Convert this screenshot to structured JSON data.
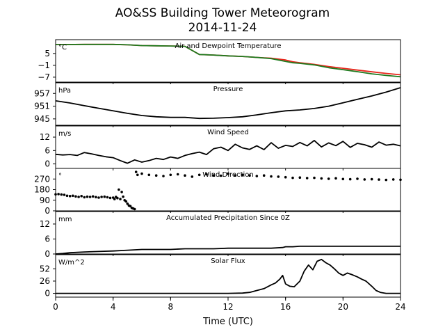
{
  "title_line1": "AO&SS Building Tower Meteorogram",
  "title_line2": "2014-11-24",
  "xlabel": "Time (UTC)",
  "xaxis": {
    "range": [
      0,
      24
    ],
    "ticks": [
      0,
      4,
      8,
      12,
      16,
      20,
      24
    ],
    "tick_labels": [
      "0",
      "4",
      "8",
      "12",
      "16",
      "20",
      "24"
    ]
  },
  "chart_data": [
    {
      "type": "line",
      "title": "Air and Dewpoint Temperature",
      "unit": "°C",
      "ylim": [
        -9.5,
        12
      ],
      "yticks": [
        5,
        -1,
        -7
      ],
      "ytick_labels": [
        "5",
        "−1",
        "−7"
      ],
      "series": [
        {
          "color": "#e8261c",
          "x": [
            0,
            2,
            4,
            5,
            6,
            7,
            8,
            9,
            10,
            11,
            12,
            13,
            14,
            15,
            16,
            16.5,
            17,
            18,
            19,
            20,
            21,
            22,
            23,
            24
          ],
          "y": [
            9.5,
            9.6,
            9.6,
            9.4,
            9.0,
            8.9,
            8.8,
            8.6,
            4.5,
            4.2,
            3.8,
            3.5,
            3.0,
            2.6,
            1.7,
            0.8,
            0.3,
            -0.5,
            -1.6,
            -2.5,
            -3.4,
            -4.3,
            -5.1,
            -5.8
          ]
        },
        {
          "color": "#1e7a1e",
          "x": [
            0,
            2,
            4,
            5,
            6,
            7,
            8,
            9,
            10,
            11,
            12,
            13,
            14,
            15,
            16,
            16.5,
            17,
            18,
            19,
            20,
            21,
            22,
            23,
            24
          ],
          "y": [
            9.5,
            9.6,
            9.6,
            9.4,
            9.0,
            8.9,
            8.8,
            8.6,
            4.5,
            4.2,
            3.8,
            3.5,
            3.0,
            2.4,
            1.0,
            0.3,
            0.0,
            -0.8,
            -2.2,
            -3.2,
            -4.2,
            -5.3,
            -6.1,
            -6.8
          ]
        }
      ]
    },
    {
      "type": "line",
      "title": "Pressure",
      "unit": "hPa",
      "ylim": [
        942,
        962
      ],
      "yticks": [
        957,
        951,
        945
      ],
      "ytick_labels": [
        "957",
        "951",
        "945"
      ],
      "series": [
        {
          "color": "#000000",
          "x": [
            0,
            1,
            2,
            3,
            4,
            5,
            6,
            7,
            8,
            9,
            10,
            11,
            12,
            13,
            14,
            15,
            16,
            17,
            18,
            19,
            20,
            21,
            22,
            23,
            24
          ],
          "y": [
            953.5,
            952.5,
            951.2,
            950.0,
            948.8,
            947.6,
            946.6,
            946.0,
            945.7,
            945.7,
            945.2,
            945.3,
            945.6,
            946.0,
            946.9,
            947.9,
            948.8,
            949.2,
            949.9,
            951.0,
            952.6,
            954.2,
            955.8,
            957.6,
            959.7
          ]
        }
      ]
    },
    {
      "type": "line",
      "title": "Wind Speed",
      "unit": "m/s",
      "ylim": [
        -2,
        17
      ],
      "yticks": [
        12,
        6,
        0
      ],
      "ytick_labels": [
        "12",
        "6",
        "0"
      ],
      "series": [
        {
          "color": "#000000",
          "x": [
            0,
            0.5,
            1,
            1.5,
            2,
            2.5,
            3,
            3.5,
            4,
            4.5,
            5,
            5.5,
            6,
            6.5,
            7,
            7.5,
            8,
            8.5,
            9,
            9.5,
            10,
            10.5,
            11,
            11.5,
            12,
            12.5,
            13,
            13.5,
            14,
            14.5,
            15,
            15.5,
            16,
            16.5,
            17,
            17.5,
            18,
            18.5,
            19,
            19.5,
            20,
            20.5,
            21,
            21.5,
            22,
            22.5,
            23,
            23.5,
            24
          ],
          "y": [
            4.3,
            4.0,
            4.2,
            3.8,
            5.1,
            4.5,
            3.8,
            3.2,
            2.8,
            1.5,
            0.3,
            1.8,
            0.8,
            1.5,
            2.5,
            2.0,
            3.1,
            2.5,
            3.8,
            4.6,
            5.3,
            4.2,
            6.8,
            7.5,
            6.0,
            8.8,
            7.2,
            6.5,
            8.1,
            6.4,
            9.5,
            7.0,
            8.3,
            7.8,
            9.6,
            8.1,
            10.5,
            7.6,
            9.4,
            8.2,
            10.1,
            7.4,
            9.2,
            8.6,
            7.5,
            9.8,
            8.4,
            8.8,
            8.1
          ]
        }
      ]
    },
    {
      "type": "scatter",
      "title": "Wind Direction",
      "unit": "°",
      "ylim": [
        0,
        360
      ],
      "yticks": [
        270,
        180,
        90,
        0
      ],
      "ytick_labels": [
        "270",
        "180",
        "90",
        "0"
      ],
      "series": [
        {
          "color": "#000000",
          "x": [
            0,
            0.2,
            0.4,
            0.6,
            0.8,
            1.0,
            1.2,
            1.4,
            1.6,
            1.8,
            2.0,
            2.2,
            2.4,
            2.6,
            2.8,
            3.0,
            3.2,
            3.4,
            3.6,
            3.8,
            4.0,
            4.1,
            4.2,
            4.3,
            4.4,
            4.5,
            4.6,
            4.7,
            4.8,
            4.9,
            5.0,
            5.1,
            5.2,
            5.3,
            5.4,
            5.5,
            5.6,
            5.7,
            6.0,
            6.5,
            7.0,
            7.5,
            8.0,
            8.5,
            9.0,
            9.5,
            10.0,
            10.5,
            11.0,
            11.5,
            12.0,
            12.5,
            13.0,
            13.5,
            14.0,
            14.5,
            15.0,
            15.5,
            16.0,
            16.5,
            17.0,
            17.5,
            18.0,
            18.5,
            19.0,
            19.5,
            20.0,
            20.5,
            21.0,
            21.5,
            22.0,
            22.5,
            23.0,
            23.5,
            24.0
          ],
          "y": [
            140,
            142,
            138,
            136,
            128,
            125,
            128,
            122,
            118,
            125,
            115,
            120,
            118,
            122,
            116,
            112,
            118,
            120,
            115,
            110,
            112,
            100,
            118,
            108,
            180,
            100,
            160,
            120,
            90,
            80,
            60,
            45,
            40,
            25,
            20,
            15,
            330,
            305,
            315,
            305,
            300,
            295,
            305,
            310,
            300,
            290,
            305,
            310,
            300,
            298,
            315,
            300,
            305,
            300,
            295,
            300,
            292,
            290,
            285,
            280,
            282,
            278,
            280,
            275,
            272,
            276,
            270,
            268,
            272,
            266,
            268,
            265,
            262,
            266,
            264
          ]
        }
      ]
    },
    {
      "type": "line",
      "title": "Accumulated Precipitation Since 0Z",
      "unit": "mm",
      "ylim": [
        0,
        17
      ],
      "yticks": [
        12,
        6,
        0
      ],
      "ytick_labels": [
        "12",
        "6",
        "0"
      ],
      "series": [
        {
          "color": "#000000",
          "x": [
            0,
            0.5,
            1,
            2,
            3,
            4,
            5,
            6,
            7,
            8,
            9,
            10,
            11,
            12,
            13,
            14,
            15,
            15.8,
            16,
            16.5,
            17,
            18,
            19,
            20,
            21,
            22,
            23,
            24
          ],
          "y": [
            0,
            0.2,
            0.5,
            0.8,
            1.0,
            1.2,
            1.5,
            1.8,
            1.8,
            1.8,
            2.1,
            2.1,
            2.1,
            2.3,
            2.3,
            2.3,
            2.3,
            2.6,
            2.9,
            2.9,
            3.1,
            3.1,
            3.1,
            3.1,
            3.1,
            3.1,
            3.1,
            3.1
          ]
        }
      ]
    },
    {
      "type": "line",
      "title": "Solar Flux",
      "unit": "W/m^2",
      "ylim": [
        -8,
        82
      ],
      "yticks": [
        52,
        26,
        0
      ],
      "ytick_labels": [
        "52",
        "26",
        "0"
      ],
      "series": [
        {
          "color": "#000000",
          "x": [
            0,
            2,
            4,
            6,
            8,
            10,
            12,
            13,
            13.5,
            14,
            14.5,
            15,
            15.3,
            15.6,
            15.8,
            16,
            16.3,
            16.6,
            17,
            17.3,
            17.6,
            17.9,
            18.2,
            18.5,
            18.8,
            19.1,
            19.4,
            19.7,
            20,
            20.3,
            20.6,
            21,
            21.3,
            21.6,
            22,
            22.3,
            22.6,
            23,
            23.5,
            24
          ],
          "y": [
            0,
            0,
            0,
            0,
            0,
            0,
            0,
            0.5,
            2,
            6,
            10,
            18,
            22,
            30,
            38,
            20,
            15,
            14,
            26,
            47,
            60,
            50,
            68,
            72,
            65,
            60,
            52,
            43,
            38,
            43,
            40,
            35,
            30,
            26,
            15,
            6,
            2,
            0,
            0,
            0
          ]
        }
      ]
    }
  ]
}
